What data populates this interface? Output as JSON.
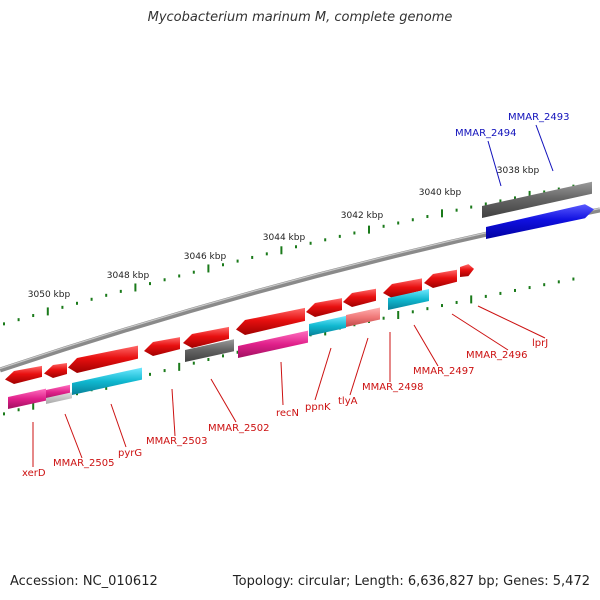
{
  "title": "Mycobacterium marinum M, complete genome",
  "footer": {
    "accession": "Accession: NC_010612",
    "topology": "Topology: circular; Length: 6,636,827 bp; Genes: 5,472"
  },
  "ruler_labels": [
    "3038 kbp",
    "3040 kbp",
    "3042 kbp",
    "3044 kbp",
    "3046 kbp",
    "3048 kbp",
    "3050 kbp"
  ],
  "gene_labels": [
    {
      "text": "MMAR_2493",
      "color": "#1111bb"
    },
    {
      "text": "MMAR_2494",
      "color": "#1111bb"
    },
    {
      "text": "lprJ",
      "color": "#cc1111"
    },
    {
      "text": "MMAR_2496",
      "color": "#cc1111"
    },
    {
      "text": "MMAR_2497",
      "color": "#cc1111"
    },
    {
      "text": "MMAR_2498",
      "color": "#cc1111"
    },
    {
      "text": "tlyA",
      "color": "#cc1111"
    },
    {
      "text": "ppnK",
      "color": "#cc1111"
    },
    {
      "text": "recN",
      "color": "#cc1111"
    },
    {
      "text": "MMAR_2502",
      "color": "#cc1111"
    },
    {
      "text": "MMAR_2503",
      "color": "#cc1111"
    },
    {
      "text": "pyrG",
      "color": "#cc1111"
    },
    {
      "text": "MMAR_2505",
      "color": "#cc1111"
    },
    {
      "text": "xerD",
      "color": "#cc1111"
    }
  ],
  "colors": {
    "backbone": "#8a8a8a",
    "ticks": "#1a7a1a",
    "cds_red": "#e81010",
    "cds_gray": "#666666",
    "cds_blue": "#1010e0",
    "cds_magenta": "#e0208a",
    "cds_cyan": "#10b8d0",
    "cds_salmon": "#f07878"
  }
}
